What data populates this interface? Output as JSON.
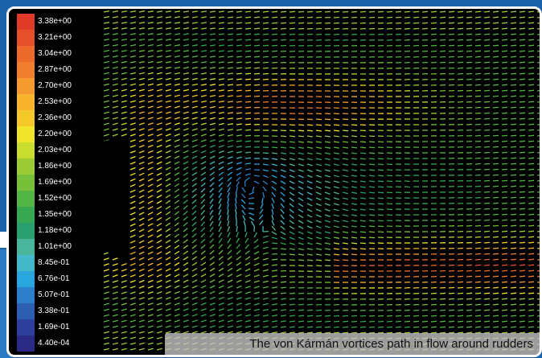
{
  "legend": {
    "labels": [
      "3.38e+00",
      "3.21e+00",
      "3.04e+00",
      "2.87e+00",
      "2.70e+00",
      "2.53e+00",
      "2.36e+00",
      "2.20e+00",
      "2.03e+00",
      "1.86e+00",
      "1.69e+00",
      "1.52e+00",
      "1.35e+00",
      "1.18e+00",
      "1.01e+00",
      "8.45e-01",
      "6.76e-01",
      "5.07e-01",
      "3.38e-01",
      "1.69e-01",
      "4.40e-04"
    ],
    "colors": [
      "#e03a28",
      "#e5502a",
      "#eb6a2c",
      "#ef7f2e",
      "#f49a2e",
      "#f7b42c",
      "#f5c82a",
      "#f1e22a",
      "#c9dd2e",
      "#9ccc34",
      "#76c03a",
      "#54b544",
      "#36a852",
      "#2aa070",
      "#4ab59a",
      "#44b8c8",
      "#2aa6de",
      "#2b7fcb",
      "#2d5eb2",
      "#2d3f9a",
      "#2b2a86"
    ]
  },
  "caption": "The von Kármán vortices path in flow around rudders",
  "colors": {
    "frame": "#1c62a8",
    "background": "#000000"
  }
}
